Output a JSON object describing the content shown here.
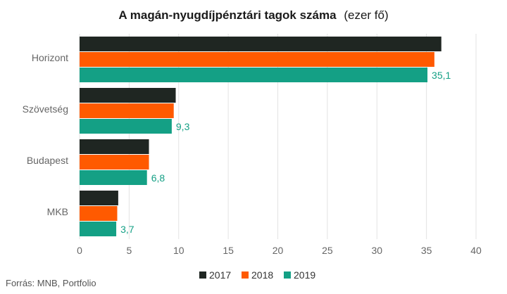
{
  "chart_data": {
    "type": "bar",
    "orientation": "horizontal",
    "title": "A magán-nyugdíjpénztári tagok száma",
    "unit": "(ezer fő)",
    "categories": [
      "Horizont",
      "Szövetség",
      "Budapest",
      "MKB"
    ],
    "series": [
      {
        "name": "2017",
        "color": "#1f2622",
        "values": [
          36.5,
          9.7,
          7.0,
          3.9
        ]
      },
      {
        "name": "2018",
        "color": "#ff5a00",
        "values": [
          35.8,
          9.5,
          7.0,
          3.8
        ]
      },
      {
        "name": "2019",
        "color": "#14a085",
        "values": [
          35.1,
          9.3,
          6.8,
          3.7
        ]
      }
    ],
    "data_labels": {
      "series": "2019",
      "color": "#14a085",
      "labels": [
        "35,1",
        "9,3",
        "6,8",
        "3,7"
      ]
    },
    "xlim": [
      0,
      40
    ],
    "xticks": [
      "0",
      "5",
      "10",
      "15",
      "20",
      "25",
      "30",
      "35",
      "40"
    ],
    "xtick_values": [
      0,
      5,
      10,
      15,
      20,
      25,
      30,
      35,
      40
    ],
    "grid": "vertical",
    "legend_position": "bottom"
  },
  "footer": {
    "source": "Forrás: MNB, Portfolio"
  }
}
